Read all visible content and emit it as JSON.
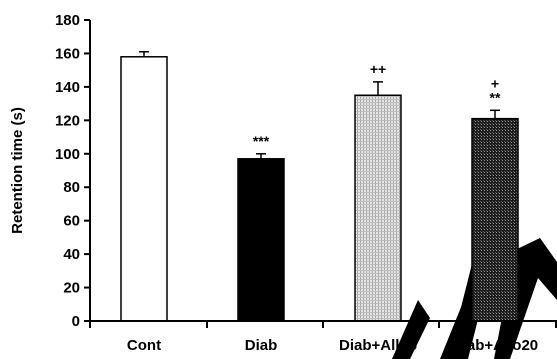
{
  "chart_data": {
    "type": "bar",
    "title": "",
    "xlabel": "",
    "ylabel": "Retention time (s)",
    "ylim": [
      0,
      180
    ],
    "yticks": [
      0,
      20,
      40,
      60,
      80,
      100,
      120,
      140,
      160,
      180
    ],
    "categories": [
      "Cont",
      "Diab",
      "Diab+Allo5",
      "Diab+Allo20"
    ],
    "values": [
      158,
      97,
      135,
      121
    ],
    "errors": [
      3,
      3,
      8,
      5
    ],
    "fills": [
      "white",
      "black",
      "light-hatch",
      "dark-crosshatch"
    ],
    "annotations": [
      {
        "category": "Diab",
        "lines": [
          "***"
        ]
      },
      {
        "category": "Diab+Allo5",
        "lines": [
          "++"
        ]
      },
      {
        "category": "Diab+Allo20",
        "lines": [
          "+",
          "**"
        ]
      }
    ],
    "grid": false,
    "legend": false
  },
  "colors": {
    "axis": "#000000",
    "bar_white": "#ffffff",
    "bar_black": "#000000",
    "bar_light_hatch": "#c8c8c8",
    "bar_dark_hatch": "#2a2a2a",
    "watermark": "#000000"
  }
}
